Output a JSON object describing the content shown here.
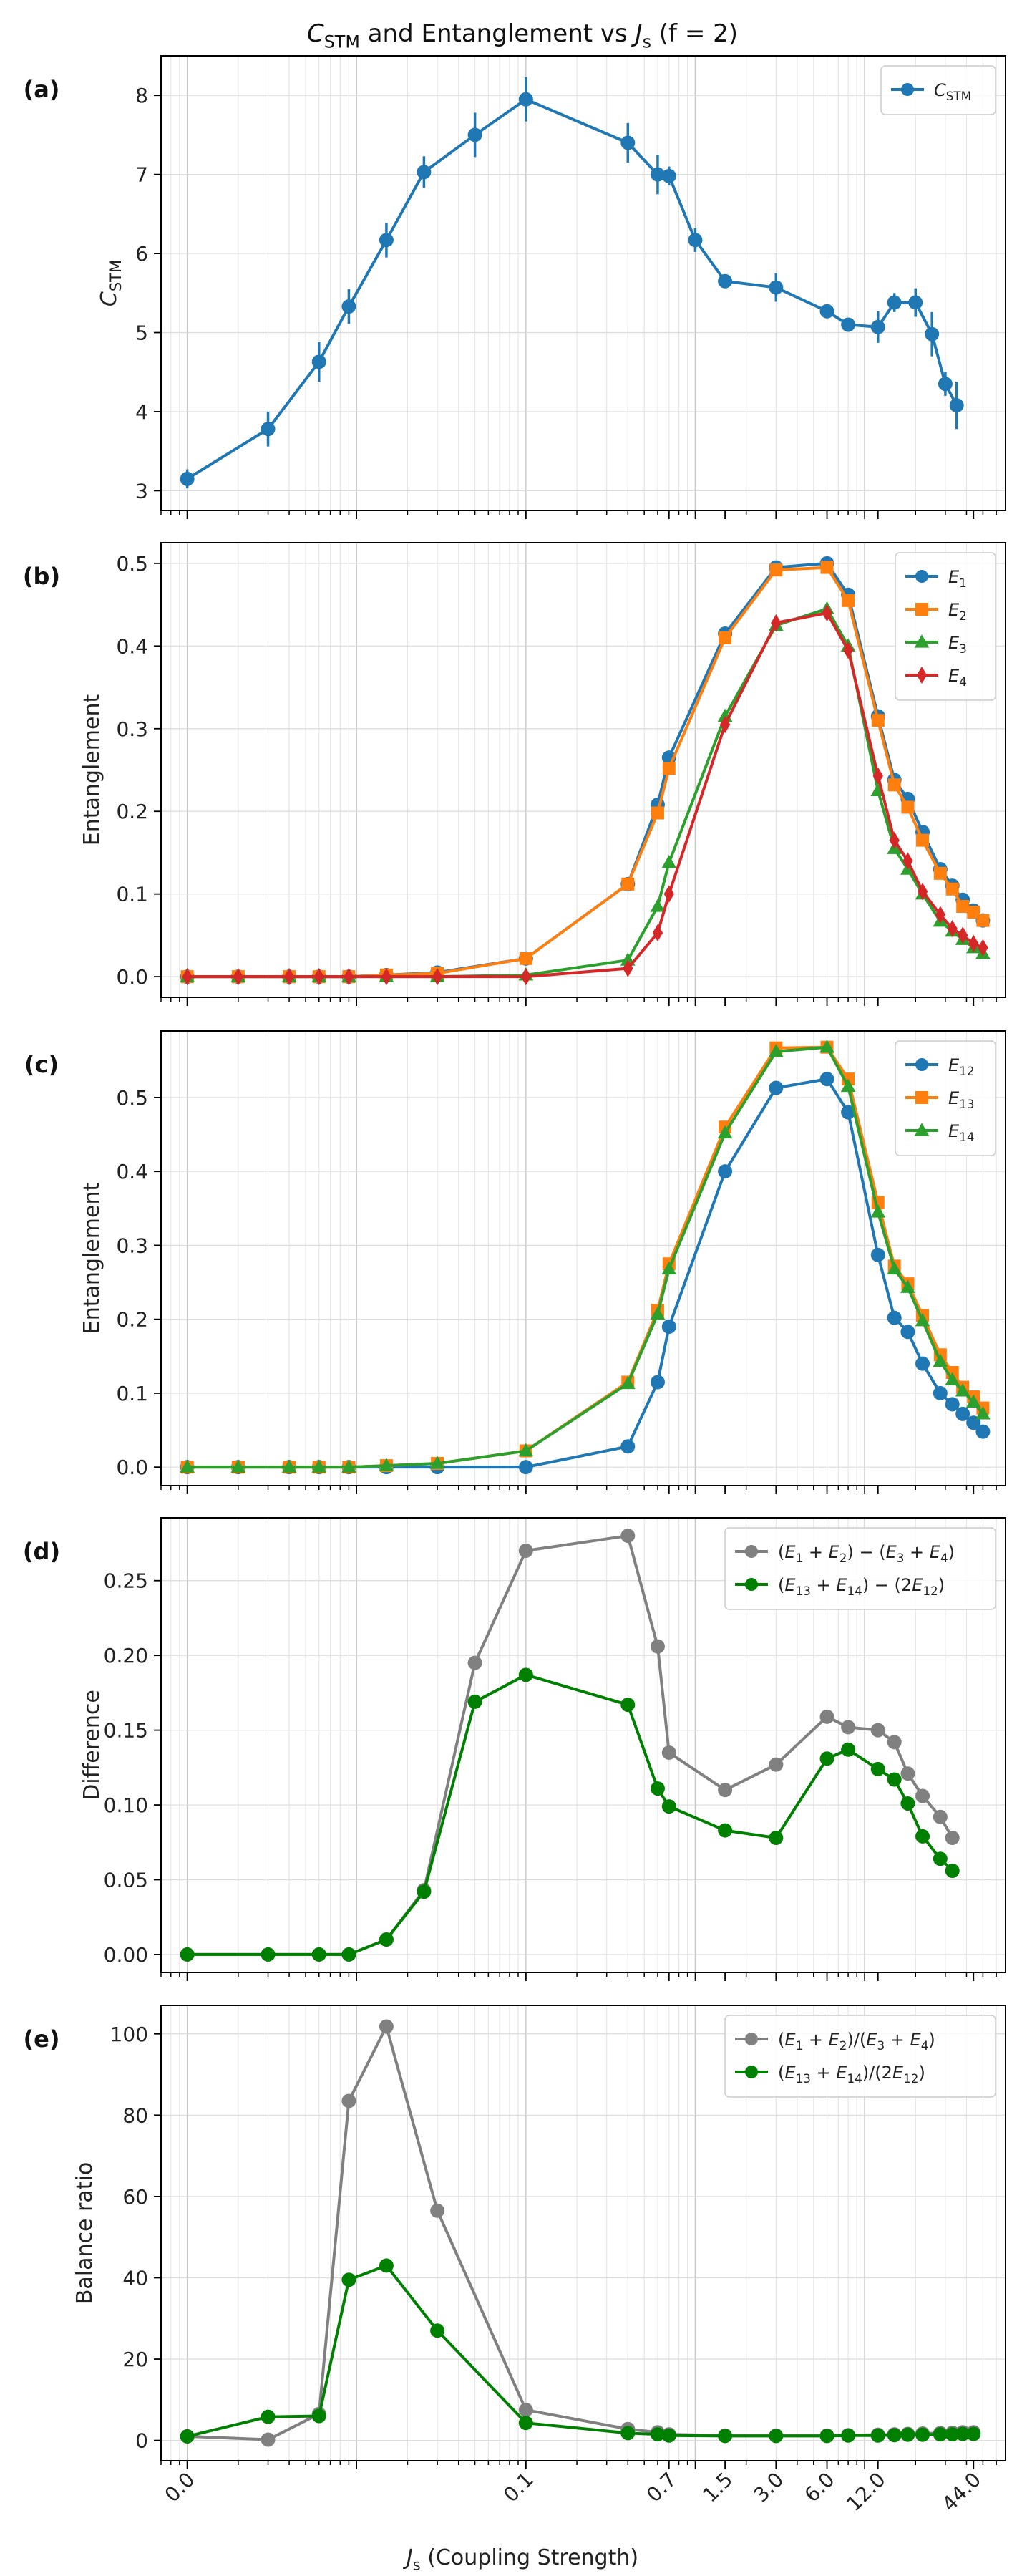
{
  "figure": {
    "title": "C_STM and Entanglement vs J_s (f = 2)",
    "xlabel": "J_s (Coupling Strength)",
    "xscale": "log",
    "xticks": [
      {
        "value": 0.001,
        "label": "0.0"
      },
      {
        "value": 0.1,
        "label": "0.1"
      },
      {
        "value": 0.7,
        "label": "0.7"
      },
      {
        "value": 1.5,
        "label": "1.5"
      },
      {
        "value": 3.0,
        "label": "3.0"
      },
      {
        "value": 6.0,
        "label": "6.0"
      },
      {
        "value": 12.0,
        "label": "12.0"
      },
      {
        "value": 44.0,
        "label": "44.0"
      }
    ]
  },
  "colors": {
    "blue": "#1f77b4",
    "orange": "#ff7f0e",
    "green": "#2ca02c",
    "red": "#d62728",
    "gray": "#808080",
    "darkgreen": "#008000"
  },
  "chart_data": [
    {
      "panel": "(a)",
      "type": "line",
      "ylabel": "C_STM",
      "ylim": [
        2.75,
        8.5
      ],
      "yticks": [
        3,
        4,
        5,
        6,
        7,
        8
      ],
      "grid": true,
      "legend": "top-right",
      "x": [
        0.001,
        0.003,
        0.006,
        0.009,
        0.015,
        0.025,
        0.05,
        0.1,
        0.4,
        0.6,
        0.7,
        1.0,
        1.5,
        3.0,
        6.0,
        8.0,
        12.0,
        15.0,
        20.0,
        25.0,
        30.0,
        35.0,
        40.0
      ],
      "series": [
        {
          "name": "C_STM",
          "color": "blue",
          "marker": "o",
          "errorbars": true,
          "values": [
            3.15,
            3.78,
            4.63,
            5.33,
            6.17,
            7.03,
            7.5,
            7.95,
            7.4,
            7.0,
            6.98,
            6.17,
            5.65,
            5.57,
            5.27,
            5.1,
            5.07,
            5.38,
            5.38,
            4.98,
            4.35,
            4.08,
            null
          ],
          "errors": [
            0.12,
            0.22,
            0.25,
            0.22,
            0.22,
            0.2,
            0.28,
            0.28,
            0.25,
            0.25,
            0.12,
            0.15,
            0.0,
            0.18,
            0.0,
            0.08,
            0.2,
            0.12,
            0.18,
            0.28,
            0.15,
            0.3,
            null
          ]
        }
      ]
    },
    {
      "panel": "(b)",
      "type": "line",
      "ylabel": "Entanglement",
      "ylim": [
        -0.025,
        0.525
      ],
      "yticks": [
        0.0,
        0.1,
        0.2,
        0.3,
        0.4,
        0.5
      ],
      "grid": true,
      "legend": "top-right",
      "x": [
        0.001,
        0.002,
        0.004,
        0.006,
        0.009,
        0.015,
        0.03,
        0.1,
        0.4,
        0.6,
        0.7,
        1.5,
        3.0,
        6.0,
        8.0,
        12.0,
        15.0,
        18.0,
        22.0,
        28.0,
        33.0,
        38.0,
        44.0,
        50.0
      ],
      "series": [
        {
          "name": "E_1",
          "color": "blue",
          "marker": "o",
          "values": [
            0.0,
            0.0,
            0.0,
            0.0,
            0.0,
            0.002,
            0.005,
            0.022,
            0.112,
            0.208,
            0.265,
            0.415,
            0.495,
            0.5,
            0.462,
            0.315,
            0.238,
            0.215,
            0.175,
            0.13,
            0.11,
            0.093,
            0.08,
            0.068
          ]
        },
        {
          "name": "E_2",
          "color": "orange",
          "marker": "s",
          "values": [
            0.0,
            0.0,
            0.0,
            0.0,
            0.0,
            0.002,
            0.004,
            0.022,
            0.112,
            0.198,
            0.252,
            0.41,
            0.492,
            0.495,
            0.455,
            0.31,
            0.232,
            0.205,
            0.165,
            0.125,
            0.106,
            0.085,
            0.078,
            0.068
          ]
        },
        {
          "name": "E_3",
          "color": "green",
          "marker": "^",
          "values": [
            0.0,
            0.0,
            0.0,
            0.0,
            0.0,
            0.0,
            0.0,
            0.002,
            0.02,
            0.085,
            0.138,
            0.315,
            0.425,
            0.445,
            0.4,
            0.225,
            0.155,
            0.13,
            0.1,
            0.067,
            0.055,
            0.045,
            0.035,
            0.028
          ]
        },
        {
          "name": "E_4",
          "color": "red",
          "marker": "d",
          "values": [
            0.0,
            0.0,
            0.0,
            0.0,
            0.0,
            0.0,
            0.0,
            0.0,
            0.01,
            0.053,
            0.1,
            0.305,
            0.428,
            0.44,
            0.395,
            0.243,
            0.165,
            0.14,
            0.103,
            0.075,
            0.058,
            0.05,
            0.04,
            0.035
          ]
        }
      ]
    },
    {
      "panel": "(c)",
      "type": "line",
      "ylabel": "Entanglement",
      "ylim": [
        -0.025,
        0.59
      ],
      "yticks": [
        0.0,
        0.1,
        0.2,
        0.3,
        0.4,
        0.5
      ],
      "grid": true,
      "legend": "top-right",
      "x": [
        0.001,
        0.002,
        0.004,
        0.006,
        0.009,
        0.015,
        0.03,
        0.1,
        0.4,
        0.6,
        0.7,
        1.5,
        3.0,
        6.0,
        8.0,
        12.0,
        15.0,
        18.0,
        22.0,
        28.0,
        33.0,
        38.0,
        44.0,
        50.0
      ],
      "series": [
        {
          "name": "E_12",
          "color": "blue",
          "marker": "o",
          "values": [
            0.0,
            0.0,
            0.0,
            0.0,
            0.0,
            0.0,
            0.0,
            0.0,
            0.028,
            0.115,
            0.19,
            0.4,
            0.513,
            0.525,
            0.48,
            0.287,
            0.202,
            0.183,
            0.14,
            0.1,
            0.085,
            0.072,
            0.06,
            0.048
          ]
        },
        {
          "name": "E_13",
          "color": "orange",
          "marker": "s",
          "values": [
            0.0,
            0.0,
            0.0,
            0.0,
            0.0,
            0.002,
            0.005,
            0.022,
            0.115,
            0.212,
            0.275,
            0.46,
            0.567,
            0.568,
            0.525,
            0.358,
            0.272,
            0.248,
            0.205,
            0.152,
            0.128,
            0.108,
            0.095,
            0.08
          ]
        },
        {
          "name": "E_14",
          "color": "green",
          "marker": "^",
          "values": [
            0.0,
            0.0,
            0.0,
            0.0,
            0.0,
            0.002,
            0.005,
            0.022,
            0.113,
            0.207,
            0.268,
            0.452,
            0.562,
            0.568,
            0.515,
            0.345,
            0.268,
            0.243,
            0.198,
            0.143,
            0.118,
            0.103,
            0.088,
            0.072
          ]
        }
      ]
    },
    {
      "panel": "(d)",
      "type": "line",
      "ylabel": "Difference",
      "ylim": [
        -0.012,
        0.292
      ],
      "yticks": [
        0.0,
        0.05,
        0.1,
        0.15,
        0.2,
        0.25
      ],
      "grid": true,
      "legend": "top-right",
      "x": [
        0.001,
        0.003,
        0.006,
        0.009,
        0.015,
        0.025,
        0.05,
        0.1,
        0.4,
        0.6,
        0.7,
        1.5,
        3.0,
        6.0,
        8.0,
        12.0,
        15.0,
        18.0,
        22.0,
        28.0,
        33.0,
        38.0,
        44.0,
        50.0
      ],
      "series": [
        {
          "name": "(E_1 + E_2) − (E_3 + E_4)",
          "color": "gray",
          "marker": "o",
          "values": [
            0.0,
            0.0,
            0.0,
            0.0,
            0.01,
            0.043,
            0.195,
            0.27,
            0.28,
            0.206,
            0.135,
            0.11,
            0.127,
            0.159,
            0.152,
            0.15,
            0.142,
            0.121,
            0.106,
            0.092,
            0.078,
            null,
            null,
            null
          ]
        },
        {
          "name": "(E_13 + E_14) − (2E_12)",
          "color": "darkgreen",
          "marker": "o",
          "values": [
            0.0,
            0.0,
            0.0,
            0.0,
            0.01,
            0.042,
            0.169,
            0.187,
            0.167,
            0.111,
            0.099,
            0.083,
            0.078,
            0.131,
            0.137,
            0.124,
            0.117,
            0.101,
            0.079,
            0.064,
            0.056,
            null,
            null,
            null
          ]
        }
      ]
    },
    {
      "panel": "(e)",
      "type": "line",
      "ylabel": "Balance ratio",
      "ylim": [
        -5,
        107
      ],
      "yticks": [
        0,
        20,
        40,
        60,
        80,
        100
      ],
      "grid": true,
      "legend": "top-right",
      "x": [
        0.001,
        0.003,
        0.006,
        0.009,
        0.015,
        0.03,
        0.1,
        0.4,
        0.6,
        0.7,
        1.5,
        3.0,
        6.0,
        8.0,
        12.0,
        15.0,
        18.0,
        22.0,
        28.0,
        33.0,
        38.0,
        44.0,
        50.0
      ],
      "series": [
        {
          "name": "(E_1 + E_2)/(E_3 + E_4)",
          "color": "gray",
          "marker": "o",
          "values": [
            1.0,
            0.2,
            6.5,
            83.5,
            101.8,
            56.5,
            7.5,
            2.8,
            2.0,
            1.5,
            1.2,
            1.2,
            1.2,
            1.3,
            1.4,
            1.5,
            1.6,
            1.7,
            1.8,
            1.9,
            2.0,
            2.0,
            null
          ]
        },
        {
          "name": "(E_13 + E_14)/(2E_12)",
          "color": "darkgreen",
          "marker": "o",
          "values": [
            1.0,
            5.8,
            6.0,
            39.5,
            43.0,
            27.0,
            4.3,
            1.8,
            1.5,
            1.2,
            1.1,
            1.1,
            1.1,
            1.2,
            1.2,
            1.3,
            1.4,
            1.4,
            1.5,
            1.5,
            1.6,
            1.6,
            null
          ]
        }
      ]
    }
  ]
}
